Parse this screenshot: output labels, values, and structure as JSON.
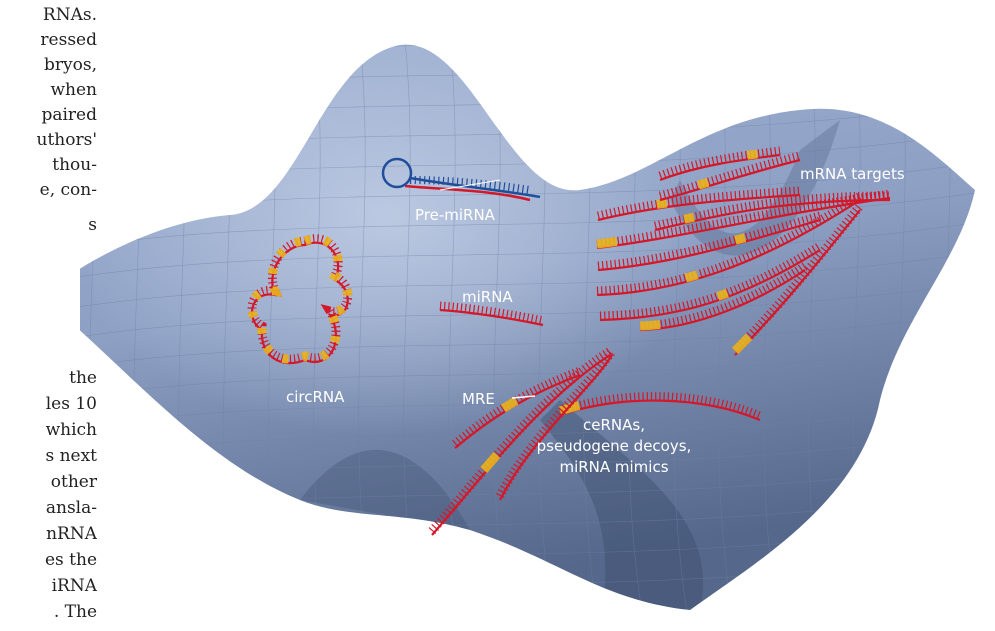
{
  "column_text": {
    "top_lines": [
      "RNAs.",
      "ressed",
      "bryos,",
      "when",
      "paired",
      "uthors'",
      "thou-",
      "e, con-",
      "s"
    ],
    "bottom_lines": [
      "the",
      "les 10",
      "which",
      "s next",
      "other",
      "ansla-",
      "nRNA",
      "es the",
      "iRNA",
      ". The"
    ]
  },
  "figure": {
    "pre_mirna": "Pre-miRNA",
    "mrna_targets": "mRNA targets",
    "mirna": "miRNA",
    "circrna": "circRNA",
    "mre": "MRE",
    "cernas": [
      "ceRNAs,",
      "pseudogene decoys,",
      "miRNA mimics"
    ]
  }
}
